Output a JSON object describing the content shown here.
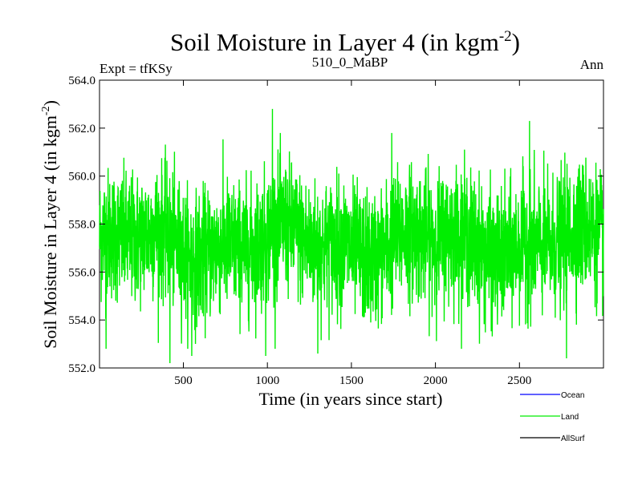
{
  "chart_data": {
    "type": "line",
    "title": "Soil Moisture in Layer 4 (in kgm",
    "title_sup": "-2",
    "title_close": ")",
    "subtitle_left": "Expt = tfKSy",
    "subtitle_center": "510_0_MaBP",
    "subtitle_right": "Ann",
    "xlabel": "Time (in years since start)",
    "ylabel": "Soil Moisture in Layer 4 (in kgm",
    "ylabel_sup": "-2",
    "ylabel_close": ")",
    "xlim": [
      1,
      3000
    ],
    "ylim": [
      552.0,
      564.0
    ],
    "xticks": [
      500,
      1000,
      1500,
      2000,
      2500
    ],
    "xtick_labels": [
      "500",
      "1000",
      "1500",
      "2000",
      "2500"
    ],
    "yticks": [
      552,
      554,
      556,
      558,
      560,
      562,
      564
    ],
    "ytick_labels": [
      "552.0",
      "554.0",
      "556.0",
      "558.0",
      "560.0",
      "562.0",
      "564.0"
    ],
    "series": [
      {
        "name": "Ocean",
        "color": "#0000ff",
        "values": []
      },
      {
        "name": "Land",
        "color": "#00ee00",
        "mean": 557.2,
        "std": 1.35,
        "min": 552.2,
        "max": 562.8,
        "n": 3000,
        "extremes": [
          [
            40,
            552.8
          ],
          [
            420,
            552.2
          ],
          [
            550,
            552.5
          ],
          [
            990,
            552.5
          ],
          [
            1030,
            562.8
          ],
          [
            1300,
            552.6
          ],
          [
            1740,
            561.8
          ],
          [
            2560,
            562.3
          ],
          [
            2780,
            552.4
          ]
        ]
      },
      {
        "name": "AllSurf",
        "color": "#000000",
        "values": []
      }
    ],
    "legend": [
      "Ocean",
      "Land",
      "AllSurf"
    ]
  }
}
